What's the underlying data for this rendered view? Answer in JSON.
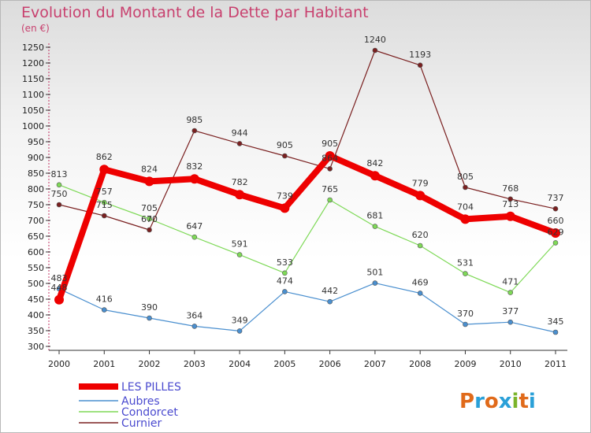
{
  "title": "Evolution du Montant de la Dette par Habitant",
  "subtitle": "(en €)",
  "logo_text": "Proxiti",
  "chart_data": {
    "type": "line",
    "title": "Evolution du Montant de la Dette par Habitant",
    "ylabel": "(en €)",
    "ylim": [
      300,
      1250
    ],
    "yticks": [
      300,
      350,
      400,
      450,
      500,
      550,
      600,
      650,
      700,
      750,
      800,
      850,
      900,
      950,
      1000,
      1050,
      1100,
      1150,
      1200,
      1250
    ],
    "categories": [
      "2000",
      "2001",
      "2002",
      "2003",
      "2004",
      "2005",
      "2006",
      "2007",
      "2008",
      "2009",
      "2010",
      "2011"
    ],
    "grid": false,
    "legend_position": "bottom-left",
    "series": [
      {
        "name": "LES PILLES",
        "color": "#ee0000",
        "values": [
          448,
          862,
          824,
          832,
          782,
          739,
          905,
          842,
          779,
          704,
          713,
          660
        ],
        "labels": [
          "448",
          "862",
          "824",
          "832",
          "782",
          "739",
          "905",
          "842",
          "779",
          "704",
          "713",
          "660"
        ]
      },
      {
        "name": "Aubres",
        "color": "#4a8fcf",
        "values": [
          483,
          416,
          390,
          364,
          349,
          474,
          442,
          501,
          469,
          370,
          377,
          345
        ],
        "labels": [
          "483",
          "416",
          "390",
          "364",
          "349",
          "474",
          "442",
          "501",
          "469",
          "370",
          "377",
          "345"
        ]
      },
      {
        "name": "Condorcet",
        "color": "#7ed957",
        "values": [
          813,
          757,
          705,
          647,
          591,
          533,
          765,
          681,
          620,
          531,
          471,
          629
        ],
        "labels": [
          "813",
          "757",
          "705",
          "647",
          "591",
          "533",
          "765",
          "681",
          "620",
          "531",
          "471",
          "629"
        ]
      },
      {
        "name": "Curnier",
        "color": "#7a2020",
        "values": [
          750,
          715,
          670,
          985,
          944,
          905,
          864,
          1240,
          1193,
          805,
          768,
          737
        ],
        "labels": [
          "750",
          "715",
          "670",
          "985",
          "944",
          "905",
          "864",
          "1240",
          "1193",
          "805",
          "768",
          "737"
        ]
      }
    ]
  }
}
